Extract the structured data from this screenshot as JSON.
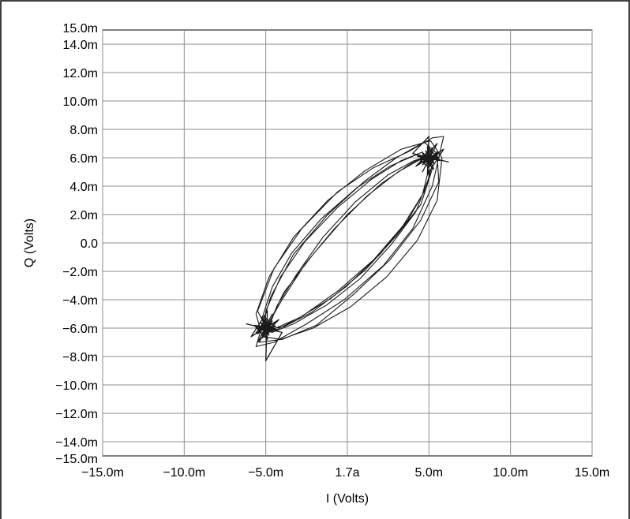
{
  "chart_data": {
    "type": "line",
    "title": "",
    "xlabel": "I (Volts)",
    "ylabel": "Q (Volts)",
    "xlim": [
      -0.015,
      0.015
    ],
    "ylim": [
      -0.015,
      0.015
    ],
    "x_ticks": [
      {
        "value": -0.015,
        "label": "−15.0m"
      },
      {
        "value": -0.01,
        "label": "−10.0m"
      },
      {
        "value": -0.005,
        "label": "−5.0m"
      },
      {
        "value": 0.0,
        "label": "1.7a"
      },
      {
        "value": 0.005,
        "label": "5.0m"
      },
      {
        "value": 0.01,
        "label": "10.0m"
      },
      {
        "value": 0.015,
        "label": "15.0m"
      }
    ],
    "y_ticks": [
      {
        "value": 0.015,
        "label": "15.0m"
      },
      {
        "value": 0.014,
        "label": "14.0m"
      },
      {
        "value": 0.012,
        "label": "12.0m"
      },
      {
        "value": 0.01,
        "label": "10.0m"
      },
      {
        "value": 0.008,
        "label": "8.0m"
      },
      {
        "value": 0.006,
        "label": "6.0m"
      },
      {
        "value": 0.004,
        "label": "4.0m"
      },
      {
        "value": 0.002,
        "label": "2.0m"
      },
      {
        "value": 0.0,
        "label": "0.0"
      },
      {
        "value": -0.002,
        "label": "−2.0m"
      },
      {
        "value": -0.004,
        "label": "−4.0m"
      },
      {
        "value": -0.006,
        "label": "−6.0m"
      },
      {
        "value": -0.008,
        "label": "−8.0m"
      },
      {
        "value": -0.01,
        "label": "−10.0m"
      },
      {
        "value": -0.012,
        "label": "−12.0m"
      },
      {
        "value": -0.014,
        "label": "−14.0m"
      },
      {
        "value": -0.015,
        "label": "−15.0m"
      }
    ],
    "x_grid_values": [
      -0.015,
      -0.01,
      -0.005,
      0.0,
      0.005,
      0.01,
      0.015
    ],
    "y_grid_values": [
      0.014,
      0.012,
      0.01,
      0.008,
      0.006,
      0.004,
      0.002,
      0.0,
      -0.002,
      -0.004,
      -0.006,
      -0.008,
      -0.01,
      -0.012,
      -0.014
    ],
    "grid": true,
    "legend": "none",
    "series": [
      {
        "points": [
          [
            -0.0048,
            -0.0059
          ],
          [
            -0.0043,
            -0.0044
          ],
          [
            -0.0031,
            -0.0022
          ],
          [
            -0.0015,
            0.0004
          ],
          [
            0.0005,
            0.0029
          ],
          [
            0.0025,
            0.0048
          ],
          [
            0.0041,
            0.0058
          ],
          [
            0.0049,
            0.0061
          ],
          [
            0.0052,
            0.0052
          ],
          [
            0.0045,
            0.0027
          ],
          [
            0.003,
            0.0005
          ],
          [
            0.0011,
            -0.0019
          ],
          [
            -0.001,
            -0.0039
          ],
          [
            -0.003,
            -0.0053
          ],
          [
            -0.0044,
            -0.006
          ],
          [
            -0.005,
            -0.0063
          ],
          [
            -0.0052,
            -0.0052
          ],
          [
            -0.0046,
            -0.0031
          ],
          [
            -0.0034,
            -0.0007
          ],
          [
            -0.0016,
            0.0017
          ],
          [
            0.0006,
            0.0039
          ],
          [
            0.0026,
            0.0054
          ],
          [
            0.0042,
            0.0062
          ],
          [
            0.005,
            0.006
          ],
          [
            0.005,
            0.0046
          ],
          [
            0.0042,
            0.0022
          ],
          [
            0.0027,
            -0.0001
          ],
          [
            0.0008,
            -0.0025
          ],
          [
            -0.0013,
            -0.0044
          ],
          [
            -0.0033,
            -0.0057
          ],
          [
            -0.0046,
            -0.0063
          ],
          [
            -0.0049,
            -0.0058
          ],
          [
            -0.004,
            -0.004
          ],
          [
            -0.0026,
            -0.0015
          ],
          [
            -0.0008,
            0.001
          ],
          [
            0.0012,
            0.0033
          ],
          [
            0.0031,
            0.005
          ],
          [
            0.0045,
            0.0059
          ],
          [
            0.0051,
            0.0057
          ],
          [
            0.0046,
            0.0034
          ],
          [
            0.0034,
            0.0012
          ],
          [
            0.0016,
            -0.0012
          ],
          [
            -0.0006,
            -0.0034
          ],
          [
            -0.0027,
            -0.0051
          ],
          [
            -0.0043,
            -0.0061
          ],
          [
            -0.0051,
            -0.0064
          ],
          [
            -0.005,
            -0.0048
          ],
          [
            -0.0041,
            -0.0024
          ],
          [
            -0.0026,
            0.0001
          ],
          [
            -0.0006,
            0.0025
          ],
          [
            0.0015,
            0.0045
          ],
          [
            0.0033,
            0.0058
          ],
          [
            0.0046,
            0.0064
          ],
          [
            0.0052,
            0.0055
          ],
          [
            0.0048,
            0.0038
          ],
          [
            0.0037,
            0.0016
          ],
          [
            0.002,
            -0.0008
          ],
          [
            -0.0001,
            -0.0031
          ],
          [
            -0.0022,
            -0.0049
          ],
          [
            -0.0039,
            -0.0059
          ],
          [
            -0.0049,
            -0.0061
          ],
          [
            -0.0055,
            -0.0048
          ],
          [
            -0.0045,
            -0.0018
          ],
          [
            -0.0028,
            0.001
          ],
          [
            -0.0006,
            0.0036
          ],
          [
            0.0016,
            0.0053
          ],
          [
            0.0037,
            0.0064
          ],
          [
            0.0052,
            0.0074
          ],
          [
            0.0059,
            0.0075
          ],
          [
            0.0052,
            0.004
          ],
          [
            0.004,
            0.001
          ],
          [
            0.0022,
            -0.0016
          ],
          [
            -0.0002,
            -0.004
          ],
          [
            -0.0025,
            -0.0057
          ],
          [
            -0.0045,
            -0.007
          ],
          [
            -0.0056,
            -0.0073
          ],
          [
            -0.0047,
            -0.0038
          ],
          [
            -0.0033,
            -0.0008
          ],
          [
            -0.0012,
            0.002
          ],
          [
            0.001,
            0.0043
          ],
          [
            0.003,
            0.006
          ],
          [
            0.0047,
            0.0071
          ],
          [
            0.0055,
            0.0063
          ],
          [
            0.0056,
            0.0043
          ],
          [
            0.0045,
            0.0016
          ],
          [
            0.0026,
            -0.0012
          ],
          [
            0.0004,
            -0.0036
          ],
          [
            -0.0019,
            -0.0058
          ],
          [
            -0.004,
            -0.0068
          ],
          [
            -0.0052,
            -0.0066
          ],
          [
            -0.0056,
            -0.005
          ],
          [
            -0.0048,
            -0.0024
          ],
          [
            -0.0033,
            0.0004
          ],
          [
            -0.0012,
            0.003
          ],
          [
            0.0011,
            0.0051
          ],
          [
            0.0033,
            0.0066
          ],
          [
            0.0051,
            0.0072
          ],
          [
            0.0058,
            0.006
          ],
          [
            0.0055,
            0.003
          ],
          [
            0.0043,
            0.0002
          ],
          [
            0.0024,
            -0.0024
          ],
          [
            0.0002,
            -0.0045
          ],
          [
            -0.0021,
            -0.006
          ],
          [
            -0.0041,
            -0.0068
          ],
          [
            -0.0054,
            -0.007
          ],
          [
            -0.0049,
            -0.0059
          ],
          [
            -0.0039,
            -0.0035
          ],
          [
            -0.0021,
            -0.0008
          ],
          [
            0.0,
            0.002
          ],
          [
            0.0021,
            0.0042
          ],
          [
            0.0039,
            0.0056
          ],
          [
            0.0049,
            0.0062
          ]
        ]
      },
      {
        "points": [
          [
            0.0049,
            0.006
          ],
          [
            0.0052,
            0.0064
          ],
          [
            0.0047,
            0.0057
          ],
          [
            0.0054,
            0.0059
          ],
          [
            0.0046,
            0.0063
          ],
          [
            0.0051,
            0.0055
          ],
          [
            0.0055,
            0.0062
          ],
          [
            0.0045,
            0.0058
          ],
          [
            0.005,
            0.0066
          ],
          [
            0.0053,
            0.0056
          ],
          [
            0.0047,
            0.0061
          ],
          [
            0.0056,
            0.006
          ],
          [
            0.0044,
            0.0059
          ],
          [
            0.005,
            0.0053
          ],
          [
            0.0052,
            0.0067
          ],
          [
            0.0048,
            0.0057
          ],
          [
            0.0055,
            0.0064
          ],
          [
            0.0046,
            0.0055
          ],
          [
            0.0051,
            0.0062
          ],
          [
            0.0043,
            0.0061
          ],
          [
            0.0057,
            0.0058
          ],
          [
            0.0049,
            0.0068
          ],
          [
            0.005,
            0.0054
          ],
          [
            0.0054,
            0.0061
          ],
          [
            0.0045,
            0.006
          ],
          [
            0.0052,
            0.0058
          ],
          [
            0.0048,
            0.0065
          ],
          [
            0.0053,
            0.0052
          ],
          [
            0.0047,
            0.0059
          ],
          [
            0.0056,
            0.0063
          ],
          [
            0.0044,
            0.0056
          ],
          [
            0.0051,
            0.006
          ],
          [
            0.0062,
            0.0057
          ],
          [
            0.004,
            0.0063
          ],
          [
            0.005,
            0.0075
          ],
          [
            0.0049,
            0.0048
          ],
          [
            0.0059,
            0.0066
          ],
          [
            0.0042,
            0.0054
          ],
          [
            0.0055,
            0.007
          ],
          [
            0.0046,
            0.005
          ],
          [
            0.0051,
            0.0061
          ],
          [
            0.0048,
            0.0059
          ],
          [
            0.0053,
            0.0062
          ],
          [
            0.005,
            0.0057
          ],
          [
            0.0049,
            0.006
          ]
        ]
      },
      {
        "points": [
          [
            -0.0049,
            -0.006
          ],
          [
            -0.0052,
            -0.0064
          ],
          [
            -0.0047,
            -0.0057
          ],
          [
            -0.0054,
            -0.0059
          ],
          [
            -0.0046,
            -0.0063
          ],
          [
            -0.0051,
            -0.0055
          ],
          [
            -0.0055,
            -0.0062
          ],
          [
            -0.0045,
            -0.0058
          ],
          [
            -0.005,
            -0.0066
          ],
          [
            -0.0053,
            -0.0056
          ],
          [
            -0.0047,
            -0.0061
          ],
          [
            -0.0056,
            -0.006
          ],
          [
            -0.0044,
            -0.0059
          ],
          [
            -0.005,
            -0.0053
          ],
          [
            -0.0052,
            -0.0067
          ],
          [
            -0.0048,
            -0.0057
          ],
          [
            -0.0055,
            -0.0064
          ],
          [
            -0.0046,
            -0.0055
          ],
          [
            -0.0051,
            -0.0062
          ],
          [
            -0.0043,
            -0.0061
          ],
          [
            -0.0057,
            -0.0058
          ],
          [
            -0.0049,
            -0.0068
          ],
          [
            -0.005,
            -0.0054
          ],
          [
            -0.0054,
            -0.0061
          ],
          [
            -0.0045,
            -0.006
          ],
          [
            -0.0052,
            -0.0058
          ],
          [
            -0.0048,
            -0.0065
          ],
          [
            -0.0053,
            -0.0052
          ],
          [
            -0.0047,
            -0.0059
          ],
          [
            -0.0056,
            -0.0063
          ],
          [
            -0.0044,
            -0.0056
          ],
          [
            -0.0051,
            -0.006
          ],
          [
            -0.0062,
            -0.0057
          ],
          [
            -0.004,
            -0.0063
          ],
          [
            -0.005,
            -0.0083
          ],
          [
            -0.0049,
            -0.0048
          ],
          [
            -0.0059,
            -0.0066
          ],
          [
            -0.0042,
            -0.0054
          ],
          [
            -0.0055,
            -0.007
          ],
          [
            -0.0046,
            -0.005
          ],
          [
            -0.0051,
            -0.0061
          ],
          [
            -0.0048,
            -0.0059
          ],
          [
            -0.0053,
            -0.0062
          ],
          [
            -0.005,
            -0.0057
          ],
          [
            -0.0049,
            -0.006
          ]
        ]
      }
    ],
    "colors": {
      "trace": "#1a1a1a",
      "grid": "#8c8c8c",
      "frame": "#000000",
      "background": "#ffffff"
    }
  }
}
